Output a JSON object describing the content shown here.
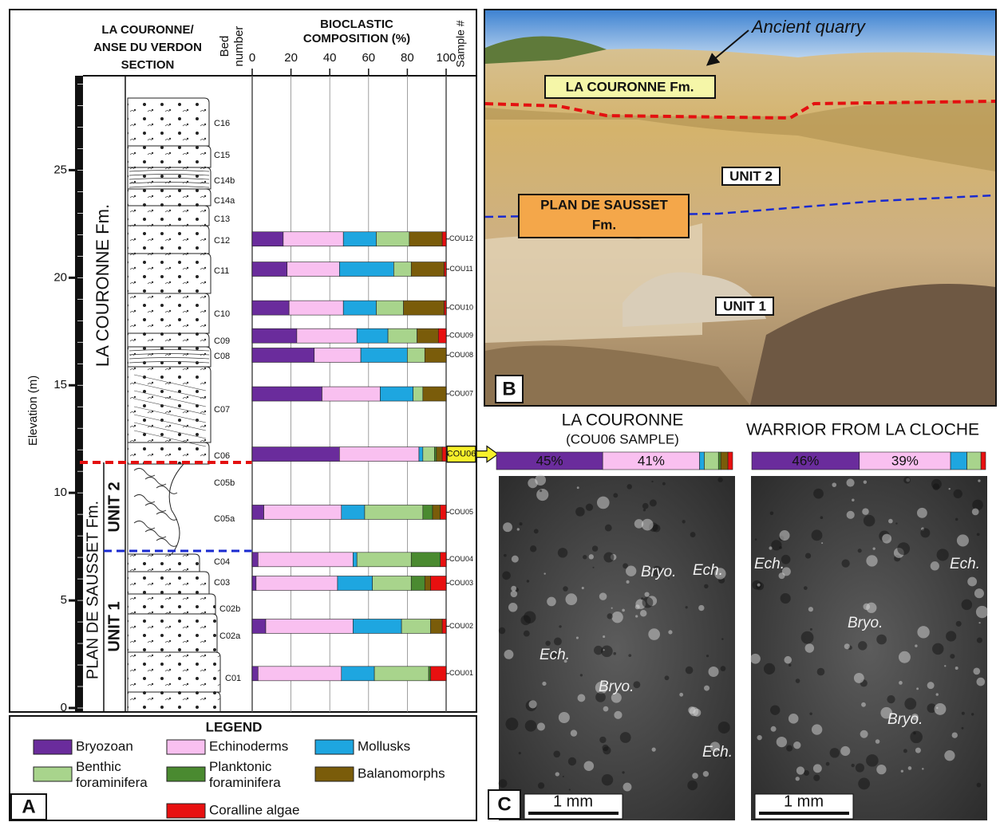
{
  "chart_data": {
    "type": "bar",
    "orientation": "horizontal",
    "section_title": [
      "LA COURONNE/",
      "ANSE DU VERDON",
      "SECTION"
    ],
    "bed_column_label": [
      "Bed",
      "number"
    ],
    "title": [
      "BIOCLASTIC",
      "COMPOSITION (%)"
    ],
    "sample_column_label": "Sample #",
    "ylabel": "Elevation (m)",
    "categories": [
      "COU12",
      "COU11",
      "COU10",
      "COU09",
      "COU08",
      "COU07",
      "COU06",
      "COU05",
      "COU04",
      "COU03",
      "COU02",
      "COU01"
    ],
    "elevation": [
      21.8,
      20.4,
      18.6,
      17.3,
      16.4,
      14.6,
      11.8,
      9.1,
      6.9,
      5.8,
      3.8,
      1.6
    ],
    "ylim": [
      0,
      29.5
    ],
    "yticks": [
      0,
      5,
      10,
      15,
      20,
      25
    ],
    "xlim": [
      0,
      100
    ],
    "xticks": [
      0,
      20,
      40,
      60,
      80,
      100
    ],
    "grid": true,
    "series": [
      {
        "name": "Bryozoan",
        "color": "#6a2c9c",
        "values": [
          16,
          18,
          19,
          23,
          32,
          36,
          45,
          6,
          3,
          2,
          7,
          3
        ]
      },
      {
        "name": "Echinoderms",
        "color": "#f9c0f0",
        "values": [
          31,
          27,
          28,
          31,
          24,
          30,
          41,
          40,
          49,
          42,
          45,
          43
        ]
      },
      {
        "name": "Mollusks",
        "color": "#1ea6e0",
        "values": [
          17,
          28,
          17,
          16,
          24,
          17,
          2,
          12,
          2,
          18,
          25,
          17
        ]
      },
      {
        "name": "Benthic foraminifera",
        "color": "#a8d48c",
        "values": [
          17,
          9,
          14,
          15,
          9,
          5,
          6,
          30,
          28,
          20,
          15,
          28
        ]
      },
      {
        "name": "Planktonic foraminifera",
        "color": "#4a8a30",
        "values": [
          0,
          0,
          0,
          0,
          0,
          0,
          1,
          5,
          15,
          7,
          0,
          1
        ]
      },
      {
        "name": "Balanomorphs",
        "color": "#7a5c0a",
        "values": [
          17,
          17,
          21,
          11,
          11,
          12,
          3,
          4,
          0,
          3,
          6,
          0
        ]
      },
      {
        "name": "Coralline algae",
        "color": "#e81010",
        "values": [
          2,
          1,
          1,
          4,
          0,
          0,
          2,
          3,
          3,
          8,
          2,
          8
        ]
      }
    ],
    "beds": [
      "C16",
      "C15",
      "C14b",
      "C14a",
      "C13",
      "C12",
      "C11",
      "C10",
      "C09",
      "C08",
      "C07",
      "C06",
      "C05b",
      "C05a",
      "C04",
      "C03",
      "C02b",
      "C02a",
      "C01"
    ],
    "formations": {
      "upper": "LA COURONNE  Fm.",
      "lower": "PLAN DE SAUSSET  Fm.",
      "unit2": "UNIT 2",
      "unit1": "UNIT 1"
    },
    "legend_title": "LEGEND",
    "panel_label": "A"
  },
  "panel_b": {
    "panel_label": "B",
    "quarry": "Ancient quarry",
    "upper": "LA COURONNE  Fm.",
    "unit2": "UNIT 2",
    "lower": [
      "PLAN DE SAUSSET",
      "Fm."
    ],
    "unit1": "UNIT 1"
  },
  "panel_c": {
    "panel_label": "C",
    "scale": "1 mm",
    "bars": [
      {
        "title": [
          "LA COURONNE",
          "(COU06 SAMPLE)"
        ],
        "values": [
          45,
          41,
          2,
          6,
          1,
          3,
          2
        ],
        "value_labels": [
          "45%",
          "41%",
          null,
          null,
          null,
          null,
          null
        ],
        "annotations": [
          "Bryo.",
          "Ech.",
          "Ech.",
          "Bryo.",
          "Ech."
        ]
      },
      {
        "title": [
          "WARRIOR FROM LA CLOCHE"
        ],
        "values": [
          46,
          39,
          7,
          6,
          0,
          0,
          2
        ],
        "value_labels": [
          "46%",
          "39%",
          null,
          null,
          null,
          null,
          null
        ],
        "annotations": [
          "Ech.",
          "Ech.",
          "Bryo.",
          "Bryo."
        ]
      }
    ]
  }
}
